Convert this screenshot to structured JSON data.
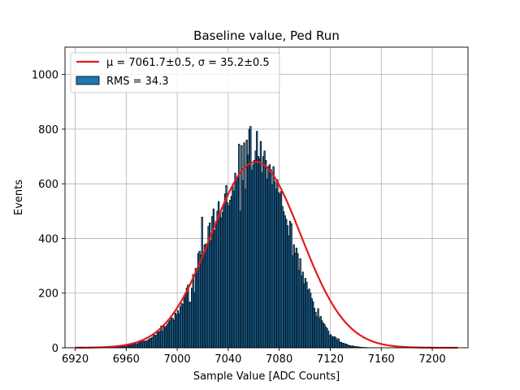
{
  "chart_data": {
    "type": "bar",
    "title": "Baseline value, Ped Run",
    "xlabel": "Sample Value [ADC Counts]",
    "ylabel": "Events",
    "xlim": [
      6912,
      7228
    ],
    "ylim": [
      0,
      1100
    ],
    "xticks": [
      6920,
      6960,
      7000,
      7040,
      7080,
      7120,
      7160,
      7200
    ],
    "yticks": [
      0,
      200,
      400,
      600,
      800,
      1000
    ],
    "grid": true,
    "legend_position": "top-left",
    "histogram": {
      "name": "RMS = 34.3",
      "color": "#1f77b4",
      "edge_color": "#000000",
      "bin_start": 6920,
      "bin_width": 1,
      "values": [
        0,
        0,
        0,
        0,
        0,
        0,
        0,
        0,
        0,
        0,
        0,
        0,
        0,
        0,
        0,
        0,
        0,
        0,
        0,
        0,
        1,
        1,
        0,
        1,
        1,
        2,
        1,
        1,
        2,
        3,
        3,
        4,
        3,
        6,
        4,
        4,
        6,
        5,
        8,
        8,
        11,
        7,
        10,
        10,
        14,
        13,
        13,
        17,
        13,
        16,
        20,
        21,
        22,
        24,
        24,
        25,
        25,
        30,
        33,
        35,
        38,
        49,
        45,
        46,
        56,
        58,
        60,
        80,
        61,
        81,
        74,
        80,
        87,
        95,
        101,
        110,
        107,
        100,
        127,
        120,
        136,
        125,
        150,
        162,
        159,
        182,
        200,
        219,
        230,
        167,
        166,
        218,
        268,
        203,
        290,
        279,
        345,
        353,
        339,
        478,
        345,
        376,
        380,
        372,
        444,
        457,
        393,
        480,
        508,
        430,
        463,
        500,
        535,
        496,
        475,
        496,
        524,
        563,
        594,
        530,
        519,
        540,
        554,
        590,
        573,
        639,
        620,
        620,
        745,
        500,
        740,
        612,
        750,
        580,
        760,
        705,
        800,
        810,
        650,
        670,
        686,
        720,
        792,
        700,
        693,
        755,
        640,
        700,
        720,
        686,
        618,
        663,
        670,
        652,
        596,
        663,
        608,
        580,
        615,
        568,
        562,
        572,
        517,
        498,
        483,
        470,
        447,
        410,
        463,
        454,
        337,
        377,
        346,
        365,
        345,
        283,
        326,
        263,
        277,
        234,
        254,
        240,
        210,
        215,
        200,
        180,
        169,
        145,
        130,
        114,
        143,
        108,
        115,
        99,
        90,
        86,
        76,
        71,
        61,
        45,
        48,
        40,
        40,
        40,
        36,
        28,
        33,
        21,
        20,
        17,
        17,
        13,
        14,
        11,
        8,
        8,
        6,
        7,
        5,
        4,
        4,
        3,
        3,
        2,
        2,
        1,
        1,
        1,
        1,
        0,
        0,
        0,
        0,
        0,
        0,
        0,
        0,
        0,
        0,
        0,
        0,
        0,
        0,
        0,
        0,
        0,
        0,
        0,
        0,
        0,
        0,
        0,
        0,
        0,
        0,
        0,
        0,
        0,
        0,
        0,
        0,
        0,
        0,
        0,
        0,
        0,
        0,
        0,
        0,
        0,
        0,
        0,
        0,
        0,
        0,
        0,
        0,
        0,
        0,
        0,
        0,
        0,
        0,
        0,
        0,
        0,
        0,
        0,
        0,
        0,
        0,
        0,
        0,
        0,
        0,
        0,
        0,
        0,
        0,
        0,
        0,
        0,
        0,
        0,
        0,
        0,
        0,
        0,
        0,
        0
      ]
    },
    "fit": {
      "name": "μ = 7061.7±0.5, σ = 35.2±0.5",
      "color": "#e41a1c",
      "mu": 7061.7,
      "sigma": 35.2,
      "amplitude": 680,
      "x_range": [
        6920,
        7220
      ]
    }
  }
}
